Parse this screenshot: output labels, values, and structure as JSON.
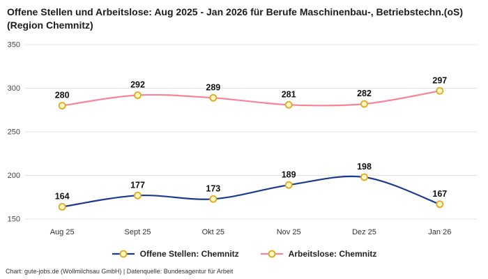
{
  "title": "Offene Stellen und Arbeitslose: Aug 2025 - Jan 2026 für Berufe Maschinenbau-, Betriebstechn.(oS) (Region Chemnitz)",
  "footer": "Chart: gute-jobs.de (Wollmilchsau GmbH) | Datenquelle: Bundesagentur für Arbeit",
  "colors": {
    "open_positions": "#1e3a8f",
    "unemployed": "#f8849a",
    "marker_fill": "#fff9c4",
    "marker_stroke": "#e0a81e",
    "grid": "#e4e4e4",
    "tick_label": "#444444",
    "data_label": "#111111"
  },
  "chart_data": {
    "type": "line",
    "categories": [
      "Aug 25",
      "Sept 25",
      "Okt 25",
      "Nov 25",
      "Dez 25",
      "Jan 26"
    ],
    "series": [
      {
        "name": "Offene Stellen: Chemnitz",
        "color_key": "open_positions",
        "values": [
          164,
          177,
          173,
          189,
          198,
          167
        ]
      },
      {
        "name": "Arbeitslose: Chemnitz",
        "color_key": "unemployed",
        "values": [
          280,
          292,
          289,
          281,
          282,
          297
        ]
      }
    ],
    "ylim": [
      150,
      350
    ],
    "yticks": [
      150,
      200,
      250,
      300,
      350
    ],
    "grid": true,
    "legend_position": "bottom",
    "data_labels": true
  }
}
